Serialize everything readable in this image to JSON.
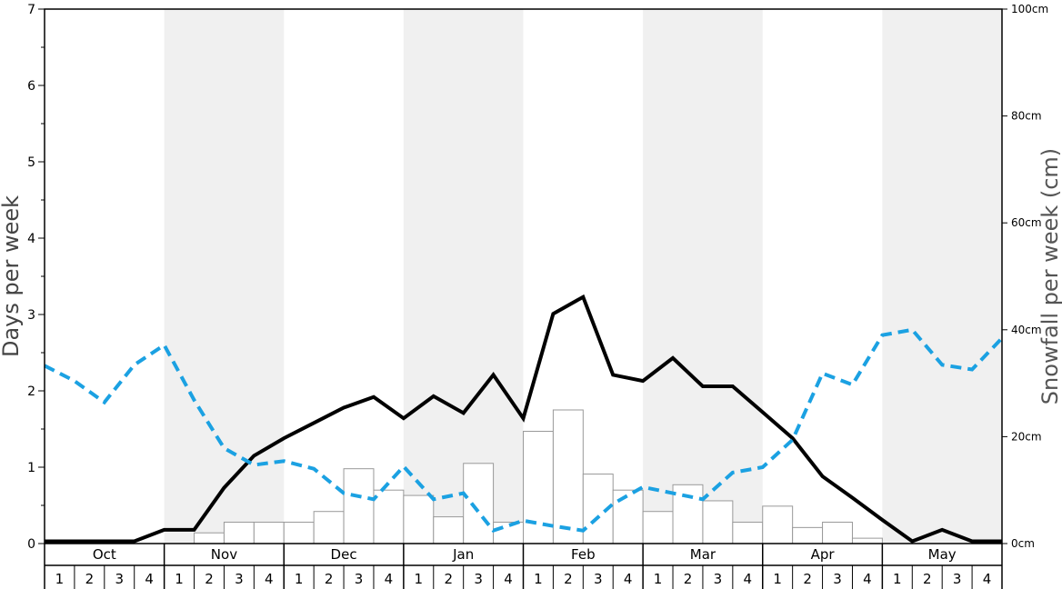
{
  "chart_data": {
    "type": "bar",
    "ylabel": "Days per week",
    "y2label": "Snowfall per week (cm)",
    "ylim": [
      0,
      7
    ],
    "y2lim": [
      0,
      100
    ],
    "yticks": [
      "0",
      "1",
      "2",
      "3",
      "4",
      "5",
      "6",
      "7"
    ],
    "y2ticks": [
      "0cm",
      "20cm",
      "40cm",
      "60cm",
      "80cm",
      "100cm"
    ],
    "months": [
      "Oct",
      "Nov",
      "Dec",
      "Jan",
      "Feb",
      "Mar",
      "Apr",
      "May"
    ],
    "weeks": [
      "1",
      "2",
      "3",
      "4"
    ],
    "grid": false,
    "colors": {
      "snowfall_bar": "#ffffff",
      "bar_edge": "#999999",
      "shade": "#f0f0f0",
      "solid": "#000000",
      "dashed": "#1ba1e2"
    },
    "series": [
      {
        "kind": "bar",
        "axis": "right",
        "values": [
          0,
          0,
          0,
          0,
          0,
          2,
          4,
          4,
          4,
          6,
          14,
          10,
          9,
          5,
          15,
          4,
          21,
          25,
          13,
          10,
          6,
          11,
          8,
          4,
          7,
          3,
          4,
          1,
          0,
          0,
          0,
          0
        ]
      },
      {
        "kind": "line",
        "style": "solid",
        "axis": "left",
        "values": [
          0.03,
          0.03,
          0.03,
          0.03,
          0.18,
          0.18,
          0.73,
          1.15,
          1.38,
          1.58,
          1.78,
          1.92,
          1.64,
          1.93,
          1.71,
          2.21,
          1.64,
          3.01,
          3.23,
          2.21,
          2.13,
          2.43,
          2.06,
          2.06,
          1.72,
          1.38,
          0.88,
          0.6,
          0.31,
          0.03,
          0.18,
          0.03,
          0.03
        ]
      },
      {
        "kind": "line",
        "style": "dashed",
        "axis": "left",
        "values": [
          2.33,
          2.13,
          1.85,
          2.34,
          2.6,
          1.88,
          1.25,
          1.03,
          1.08,
          0.98,
          0.66,
          0.58,
          1.01,
          0.58,
          0.66,
          0.17,
          0.3,
          0.23,
          0.17,
          0.52,
          0.74,
          0.66,
          0.58,
          0.93,
          1.0,
          1.36,
          2.23,
          2.08,
          2.73,
          2.8,
          2.34,
          2.28,
          2.69
        ]
      }
    ]
  }
}
